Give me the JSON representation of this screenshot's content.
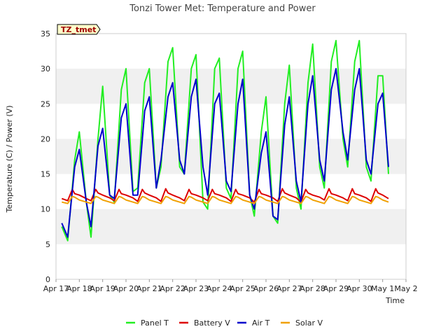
{
  "chart_data": {
    "type": "line",
    "title": "Tonzi Tower Met: Temperature and Power",
    "badge": "TZ_tmet",
    "xlabel": "Time",
    "ylabel": "Temperature (C) / Power (V)",
    "xlim": [
      0,
      15
    ],
    "ylim": [
      0,
      35
    ],
    "y_ticks": [
      0,
      5,
      10,
      15,
      20,
      25,
      30,
      35
    ],
    "x_ticks": [
      {
        "pos": 0,
        "label": "Apr 17"
      },
      {
        "pos": 1,
        "label": "Apr 18"
      },
      {
        "pos": 2,
        "label": "Apr 19"
      },
      {
        "pos": 3,
        "label": "Apr 20"
      },
      {
        "pos": 4,
        "label": "Apr 21"
      },
      {
        "pos": 5,
        "label": "Apr 22"
      },
      {
        "pos": 6,
        "label": "Apr 23"
      },
      {
        "pos": 7,
        "label": "Apr 24"
      },
      {
        "pos": 8,
        "label": "Apr 25"
      },
      {
        "pos": 9,
        "label": "Apr 26"
      },
      {
        "pos": 10,
        "label": "Apr 27"
      },
      {
        "pos": 11,
        "label": "Apr 28"
      },
      {
        "pos": 12,
        "label": "Apr 29"
      },
      {
        "pos": 13,
        "label": "Apr 30"
      },
      {
        "pos": 14,
        "label": "May 1"
      },
      {
        "pos": 15,
        "label": "May 2"
      }
    ],
    "series": [
      {
        "name": "Panel T",
        "color": "#22ee22",
        "x": [
          0.25,
          0.5,
          0.8,
          1.0,
          1.3,
          1.5,
          1.8,
          2.0,
          2.3,
          2.5,
          2.8,
          3.0,
          3.3,
          3.5,
          3.8,
          4.0,
          4.3,
          4.5,
          4.8,
          5.0,
          5.3,
          5.5,
          5.8,
          6.0,
          6.3,
          6.5,
          6.8,
          7.0,
          7.3,
          7.5,
          7.8,
          8.0,
          8.3,
          8.5,
          8.8,
          9.0,
          9.3,
          9.5,
          9.8,
          10.0,
          10.3,
          10.5,
          10.8,
          11.0,
          11.3,
          11.5,
          11.8,
          12.0,
          12.3,
          12.5,
          12.8,
          13.0,
          13.3,
          13.5,
          13.8,
          14.0,
          14.25
        ],
        "values": [
          7.5,
          5.5,
          17.0,
          21.0,
          11.0,
          6.0,
          20.0,
          27.5,
          12.0,
          11.0,
          27.0,
          30.0,
          12.5,
          13.0,
          28.0,
          30.0,
          13.0,
          16.0,
          31.0,
          33.0,
          16.0,
          15.0,
          30.0,
          32.0,
          11.0,
          10.0,
          30.0,
          31.5,
          13.0,
          11.5,
          30.0,
          32.5,
          12.0,
          9.0,
          21.0,
          26.0,
          9.0,
          8.0,
          25.0,
          30.5,
          13.0,
          10.0,
          28.0,
          33.5,
          16.0,
          13.0,
          31.0,
          34.0,
          20.0,
          16.0,
          31.0,
          34.0,
          16.0,
          14.0,
          29.0,
          29.0,
          15.0
        ]
      },
      {
        "name": "Battery V",
        "color": "#dd0000",
        "x": [
          0.25,
          0.5,
          0.7,
          0.8,
          1.0,
          1.3,
          1.5,
          1.7,
          1.8,
          2.0,
          2.3,
          2.5,
          2.7,
          2.8,
          3.0,
          3.3,
          3.5,
          3.7,
          3.8,
          4.0,
          4.3,
          4.5,
          4.7,
          4.8,
          5.0,
          5.3,
          5.5,
          5.7,
          5.8,
          6.0,
          6.3,
          6.5,
          6.7,
          6.8,
          7.0,
          7.3,
          7.5,
          7.7,
          7.8,
          8.0,
          8.3,
          8.5,
          8.7,
          8.8,
          9.0,
          9.3,
          9.5,
          9.7,
          9.8,
          10.0,
          10.3,
          10.5,
          10.7,
          10.8,
          11.0,
          11.3,
          11.5,
          11.7,
          11.8,
          12.0,
          12.3,
          12.5,
          12.7,
          12.8,
          13.0,
          13.3,
          13.5,
          13.7,
          13.8,
          14.0,
          14.25
        ],
        "values": [
          11.5,
          11.2,
          12.8,
          12.2,
          12.0,
          11.5,
          11.2,
          12.8,
          12.3,
          12.0,
          11.6,
          11.2,
          12.8,
          12.2,
          12.0,
          11.6,
          11.1,
          12.8,
          12.3,
          12.0,
          11.6,
          11.1,
          12.9,
          12.3,
          12.0,
          11.6,
          11.2,
          12.8,
          12.2,
          12.0,
          11.6,
          11.2,
          12.8,
          12.2,
          12.0,
          11.6,
          11.1,
          12.8,
          12.2,
          12.0,
          11.6,
          11.0,
          12.8,
          12.2,
          12.0,
          11.6,
          11.1,
          12.9,
          12.3,
          12.0,
          11.6,
          11.0,
          12.8,
          12.3,
          12.0,
          11.7,
          11.3,
          12.9,
          12.2,
          12.0,
          11.6,
          11.2,
          12.9,
          12.2,
          12.0,
          11.6,
          11.1,
          12.9,
          12.3,
          12.0,
          11.5
        ]
      },
      {
        "name": "Air T",
        "color": "#0000cc",
        "x": [
          0.25,
          0.5,
          0.8,
          1.0,
          1.3,
          1.5,
          1.8,
          2.0,
          2.3,
          2.5,
          2.8,
          3.0,
          3.3,
          3.5,
          3.8,
          4.0,
          4.3,
          4.5,
          4.8,
          5.0,
          5.3,
          5.5,
          5.8,
          6.0,
          6.3,
          6.5,
          6.8,
          7.0,
          7.3,
          7.5,
          7.8,
          8.0,
          8.3,
          8.5,
          8.8,
          9.0,
          9.3,
          9.5,
          9.8,
          10.0,
          10.3,
          10.5,
          10.8,
          11.0,
          11.3,
          11.5,
          11.8,
          12.0,
          12.3,
          12.5,
          12.8,
          13.0,
          13.3,
          13.5,
          13.8,
          14.0,
          14.25
        ],
        "values": [
          8.0,
          6.0,
          16.0,
          18.5,
          11.0,
          7.5,
          19.0,
          21.5,
          12.0,
          11.5,
          23.0,
          25.0,
          12.0,
          12.0,
          24.0,
          26.0,
          13.0,
          17.0,
          26.0,
          28.0,
          17.0,
          15.0,
          26.0,
          28.5,
          16.0,
          12.0,
          25.0,
          26.5,
          14.0,
          12.5,
          25.0,
          28.5,
          12.0,
          10.0,
          18.0,
          21.0,
          9.0,
          8.5,
          22.0,
          26.0,
          14.0,
          11.0,
          25.0,
          29.0,
          17.0,
          14.0,
          27.0,
          30.0,
          21.0,
          17.0,
          27.0,
          30.0,
          17.0,
          15.0,
          25.0,
          26.5,
          16.0
        ]
      },
      {
        "name": "Solar V",
        "color": "#f0a000",
        "x": [
          0.25,
          0.5,
          0.7,
          0.8,
          1.0,
          1.3,
          1.5,
          1.7,
          1.8,
          2.0,
          2.3,
          2.5,
          2.7,
          2.8,
          3.0,
          3.3,
          3.5,
          3.7,
          3.8,
          4.0,
          4.3,
          4.5,
          4.7,
          4.8,
          5.0,
          5.3,
          5.5,
          5.7,
          5.8,
          6.0,
          6.3,
          6.5,
          6.7,
          6.8,
          7.0,
          7.3,
          7.5,
          7.7,
          7.8,
          8.0,
          8.3,
          8.5,
          8.7,
          8.8,
          9.0,
          9.3,
          9.5,
          9.7,
          9.8,
          10.0,
          10.3,
          10.5,
          10.7,
          10.8,
          11.0,
          11.3,
          11.5,
          11.7,
          11.8,
          12.0,
          12.3,
          12.5,
          12.7,
          12.8,
          13.0,
          13.3,
          13.5,
          13.7,
          13.8,
          14.0,
          14.25
        ],
        "values": [
          11.0,
          10.8,
          11.8,
          11.7,
          11.3,
          11.0,
          10.8,
          11.8,
          11.7,
          11.3,
          11.0,
          10.8,
          11.8,
          11.7,
          11.3,
          11.0,
          10.8,
          11.8,
          11.7,
          11.3,
          11.0,
          10.8,
          11.8,
          11.7,
          11.3,
          11.0,
          10.8,
          11.8,
          11.7,
          11.3,
          11.0,
          10.8,
          11.8,
          11.7,
          11.3,
          11.0,
          10.8,
          11.8,
          11.7,
          11.3,
          11.0,
          10.8,
          11.8,
          11.7,
          11.3,
          11.0,
          10.8,
          11.8,
          11.7,
          11.3,
          11.0,
          10.8,
          11.8,
          11.7,
          11.3,
          11.0,
          10.8,
          11.8,
          11.7,
          11.3,
          11.0,
          10.8,
          11.8,
          11.7,
          11.3,
          11.0,
          10.8,
          11.8,
          11.7,
          11.3,
          11.0
        ]
      }
    ]
  }
}
